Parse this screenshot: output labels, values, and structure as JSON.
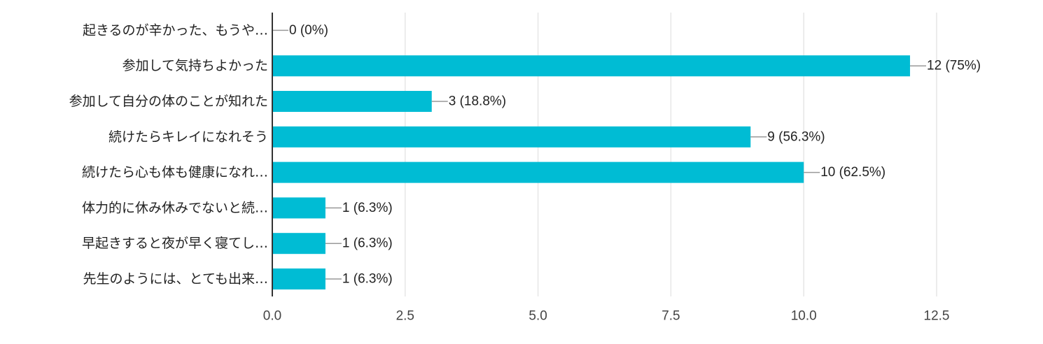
{
  "chart_data": {
    "type": "bar",
    "orientation": "horizontal",
    "categories": [
      "起きるのが辛かった、もうや…",
      "参加して気持ちよかった",
      "参加して自分の体のことが知れた",
      "続けたらキレイになれそう",
      "続けたら心も体も健康になれ…",
      "体力的に休み休みでないと続…",
      "早起きすると夜が早く寝てし…",
      "先生のようには、とても出来…"
    ],
    "values": [
      0,
      12,
      3,
      9,
      10,
      1,
      1,
      1
    ],
    "value_labels": [
      "0 (0%)",
      "12 (75%)",
      "3 (18.8%)",
      "9 (56.3%)",
      "10 (62.5%)",
      "1 (6.3%)",
      "1 (6.3%)",
      "1 (6.3%)"
    ],
    "xlim": [
      0,
      12.5
    ],
    "x_ticks": [
      0,
      2.5,
      5,
      7.5,
      10,
      12.5
    ],
    "x_tick_labels": [
      "0.0",
      "2.5",
      "5.0",
      "7.5",
      "10.0",
      "12.5"
    ],
    "grid": true,
    "colors": {
      "bar": "#00bcd4",
      "grid": "#e6e6e6",
      "axis": "#333333",
      "leader": "#999999"
    }
  }
}
